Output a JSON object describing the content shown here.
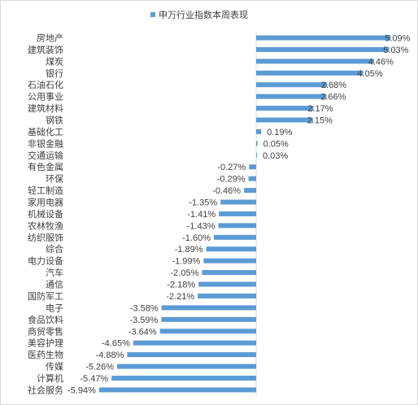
{
  "chart_data": {
    "type": "bar",
    "orientation": "horizontal",
    "legend_position": "top",
    "grid": false,
    "bar_color": "#5b9bd5",
    "xlim": [
      -6.5,
      6.0
    ],
    "series": [
      {
        "name": "申万行业指数本周表现",
        "categories": [
          "房地产",
          "建筑装饰",
          "煤炭",
          "银行",
          "石油石化",
          "公用事业",
          "建筑材料",
          "钢铁",
          "基础化工",
          "非银金融",
          "交通运输",
          "有色金属",
          "环保",
          "轻工制造",
          "家用电器",
          "机械设备",
          "农林牧渔",
          "纺织服饰",
          "综合",
          "电力设备",
          "汽车",
          "通信",
          "国防军工",
          "电子",
          "食品饮料",
          "商贸零售",
          "美容护理",
          "医药生物",
          "传媒",
          "计算机",
          "社会服务"
        ],
        "values": [
          5.09,
          5.03,
          4.46,
          4.05,
          2.68,
          2.66,
          2.17,
          2.15,
          0.19,
          0.05,
          0.03,
          -0.27,
          -0.29,
          -0.46,
          -1.35,
          -1.41,
          -1.43,
          -1.6,
          -1.89,
          -1.99,
          -2.05,
          -2.18,
          -2.21,
          -3.58,
          -3.59,
          -3.64,
          -4.65,
          -4.88,
          -5.26,
          -5.47,
          -5.94
        ],
        "labels": [
          "5.09%",
          "5.03%",
          "4.46%",
          "4.05%",
          "2.68%",
          "2.66%",
          "2.17%",
          "2.15%",
          "0.19%",
          "0.05%",
          "0.03%",
          "-0.27%",
          "-0.29%",
          "-0.46%",
          "-1.35%",
          "-1.41%",
          "-1.43%",
          "-1.60%",
          "-1.89%",
          "-1.99%",
          "-2.05%",
          "-2.18%",
          "-2.21%",
          "-3.58%",
          "-3.59%",
          "-3.64%",
          "-4.65%",
          "-4.88%",
          "-5.26%",
          "-5.47%",
          "-5.94%"
        ]
      }
    ]
  }
}
